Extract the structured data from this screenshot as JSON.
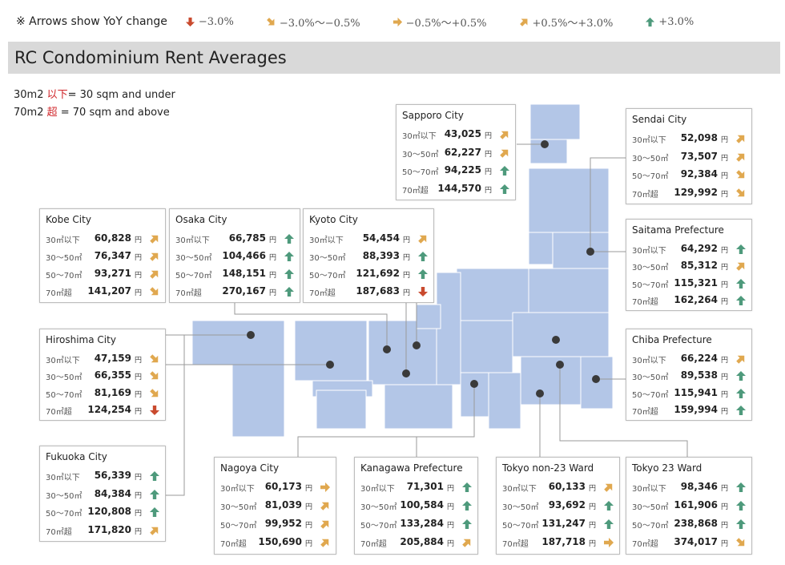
{
  "legend": {
    "note": "※ Arrows show YoY change",
    "items": [
      {
        "label": "−3.0%",
        "kind": "down"
      },
      {
        "label": "−3.0%〜−0.5%",
        "kind": "down-right"
      },
      {
        "label": "−0.5%〜+0.5%",
        "kind": "right"
      },
      {
        "label": "+0.5%〜+3.0%",
        "kind": "up-right"
      },
      {
        "label": "+3.0%",
        "kind": "up"
      }
    ]
  },
  "title": "RC Condominium Rent Averages",
  "definitions": {
    "line1_prefix": "30m2 ",
    "line1_red": "以下",
    "line1_rest": "= 30 sqm and under",
    "line2_prefix": "70m2 ",
    "line2_red": "超",
    "line2_rest": " = 70 sqm and above"
  },
  "colors": {
    "down": "#c94a2e",
    "orange": "#e0a84f",
    "up": "#4e9a7c",
    "map": "#b3c6e7"
  },
  "chart_data": {
    "type": "table",
    "title": "RC Condominium Rent Averages",
    "currency": "円",
    "size_labels": [
      "30㎡以下",
      "30～50㎡",
      "50～70㎡",
      "70㎡超"
    ],
    "cities": [
      {
        "id": "sapporo",
        "name": "Sapporo City",
        "values": [
          "43,025",
          "62,227",
          "94,225",
          "144,570"
        ],
        "arrows": [
          "up-right",
          "up-right",
          "up",
          "up"
        ]
      },
      {
        "id": "sendai",
        "name": "Sendai City",
        "values": [
          "52,098",
          "73,507",
          "92,384",
          "129,992"
        ],
        "arrows": [
          "up-right",
          "up-right",
          "down-right",
          "down-right"
        ]
      },
      {
        "id": "kobe",
        "name": "Kobe City",
        "values": [
          "60,828",
          "76,347",
          "93,271",
          "141,207"
        ],
        "arrows": [
          "up-right",
          "up-right",
          "up-right",
          "down-right"
        ]
      },
      {
        "id": "osaka",
        "name": "Osaka City",
        "values": [
          "66,785",
          "104,466",
          "148,151",
          "270,167"
        ],
        "arrows": [
          "up",
          "up",
          "up",
          "up"
        ]
      },
      {
        "id": "kyoto",
        "name": "Kyoto City",
        "values": [
          "54,454",
          "88,393",
          "121,692",
          "187,683"
        ],
        "arrows": [
          "up-right",
          "up",
          "up",
          "down"
        ]
      },
      {
        "id": "saitama",
        "name": "Saitama Prefecture",
        "values": [
          "64,292",
          "85,312",
          "115,321",
          "162,264"
        ],
        "arrows": [
          "up",
          "up-right",
          "up",
          "up"
        ]
      },
      {
        "id": "hiroshima",
        "name": "Hiroshima City",
        "values": [
          "47,159",
          "66,355",
          "81,169",
          "124,254"
        ],
        "arrows": [
          "down-right",
          "down-right",
          "down-right",
          "down"
        ]
      },
      {
        "id": "chiba",
        "name": "Chiba Prefecture",
        "values": [
          "66,224",
          "89,538",
          "115,941",
          "159,994"
        ],
        "arrows": [
          "up-right",
          "up",
          "up",
          "up"
        ]
      },
      {
        "id": "fukuoka",
        "name": "Fukuoka City",
        "values": [
          "56,339",
          "84,384",
          "120,808",
          "171,820"
        ],
        "arrows": [
          "up",
          "up",
          "up",
          "up-right"
        ]
      },
      {
        "id": "nagoya",
        "name": "Nagoya City",
        "values": [
          "60,173",
          "81,039",
          "99,952",
          "150,690"
        ],
        "arrows": [
          "right",
          "up-right",
          "up-right",
          "up-right"
        ]
      },
      {
        "id": "kanagawa",
        "name": "Kanagawa Prefecture",
        "values": [
          "71,301",
          "100,584",
          "133,284",
          "205,884"
        ],
        "arrows": [
          "up",
          "up",
          "up",
          "up-right"
        ]
      },
      {
        "id": "tokyo-non23",
        "name": "Tokyo non-23 Ward",
        "values": [
          "60,133",
          "93,692",
          "131,247",
          "187,718"
        ],
        "arrows": [
          "up-right",
          "up",
          "up",
          "right"
        ]
      },
      {
        "id": "tokyo-23",
        "name": "Tokyo 23 Ward",
        "values": [
          "98,346",
          "161,906",
          "238,868",
          "374,017"
        ],
        "arrows": [
          "up",
          "up",
          "up",
          "down-right"
        ]
      }
    ]
  }
}
